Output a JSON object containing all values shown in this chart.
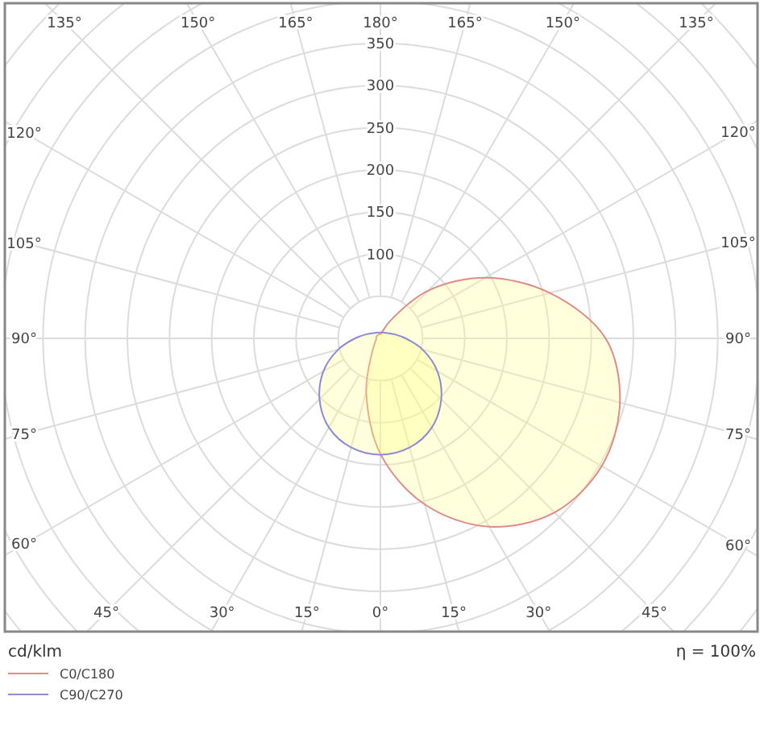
{
  "chart_data": {
    "type": "radar",
    "categories": [
      "180°",
      "165°",
      "150°",
      "135°",
      "120°",
      "105°",
      "90°",
      "75°",
      "60°",
      "45°",
      "30°",
      "15°",
      "0°",
      "15°",
      "30°",
      "45°",
      "60°",
      "75°",
      "90°",
      "105°",
      "120°",
      "135°",
      "150°",
      "165°"
    ],
    "series": [
      {
        "name": "C0/C180",
        "color": "#e08a8a",
        "values": [
          5,
          8,
          25,
          80,
          144,
          208,
          267,
          294,
          303,
          292,
          258,
          204,
          137,
          65,
          20,
          10,
          7,
          5,
          5,
          5,
          5,
          5,
          5,
          5
        ]
      },
      {
        "name": "C90/C270",
        "color": "#8a8ad6",
        "values": [
          7,
          7,
          8,
          9,
          12,
          18,
          30,
          52,
          78,
          102,
          122,
          134,
          138,
          134,
          122,
          102,
          78,
          52,
          30,
          18,
          12,
          9,
          8,
          7
        ]
      }
    ],
    "ylim": [
      0,
      600
    ],
    "yticks": [
      100,
      150,
      200,
      250,
      300,
      350
    ],
    "ylabel": "cd/klm",
    "annotations": [
      "η = 100%"
    ],
    "grid": true,
    "legend": "bottom left"
  }
}
